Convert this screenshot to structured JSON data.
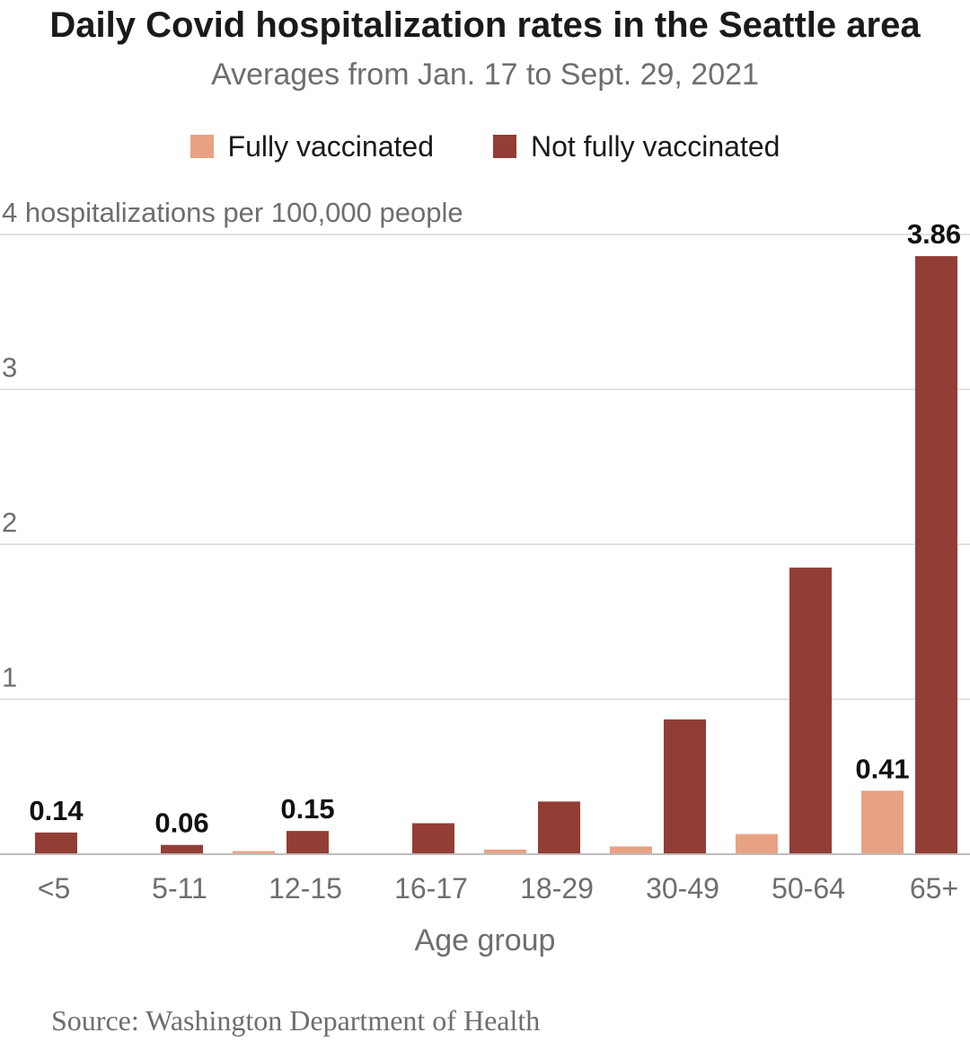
{
  "chart_data": {
    "type": "bar",
    "title": "Daily Covid hospitalization rates in the Seattle area",
    "subtitle": "Averages from Jan. 17 to Sept. 29, 2021",
    "ylabel": "hospitalizations per 100,000 people",
    "xlabel": "Age group",
    "ylim": [
      0,
      4
    ],
    "yticks": [
      1,
      2,
      3,
      4
    ],
    "categories": [
      "<5",
      "5-11",
      "12-15",
      "16-17",
      "18-29",
      "30-49",
      "50-64",
      "65+"
    ],
    "series": [
      {
        "name": "Fully vaccinated",
        "color": "#e8a283",
        "values": [
          0,
          0,
          0.02,
          0,
          0.03,
          0.05,
          0.13,
          0.41
        ]
      },
      {
        "name": "Not fully vaccinated",
        "color": "#923e35",
        "values": [
          0.14,
          0.06,
          0.15,
          0.2,
          0.34,
          0.87,
          1.85,
          3.86
        ]
      }
    ],
    "data_labels": [
      {
        "category": "<5",
        "series": "Not fully vaccinated",
        "text": "0.14"
      },
      {
        "category": "5-11",
        "series": "Not fully vaccinated",
        "text": "0.06"
      },
      {
        "category": "12-15",
        "series": "Not fully vaccinated",
        "text": "0.15"
      },
      {
        "category": "65+",
        "series": "Fully vaccinated",
        "text": "0.41"
      },
      {
        "category": "65+",
        "series": "Not fully vaccinated",
        "text": "3.86"
      }
    ],
    "grid": true,
    "legend_position": "top-center"
  },
  "labels": {
    "title": "Daily Covid hospitalization rates in the Seattle area",
    "subtitle": "Averages from Jan. 17 to Sept. 29, 2021",
    "legend_fully": "Fully vaccinated",
    "legend_not_fully": "Not fully vaccinated",
    "y_axis_label": "hospitalizations per 100,000 people",
    "x_axis_label": "Age group",
    "source": "Source: Washington Department of Health"
  },
  "colors": {
    "fully_vaccinated": "#e8a283",
    "not_fully_vaccinated": "#923e35",
    "gridline": "#d9d9d9",
    "axis_text": "#6e6e6e"
  }
}
